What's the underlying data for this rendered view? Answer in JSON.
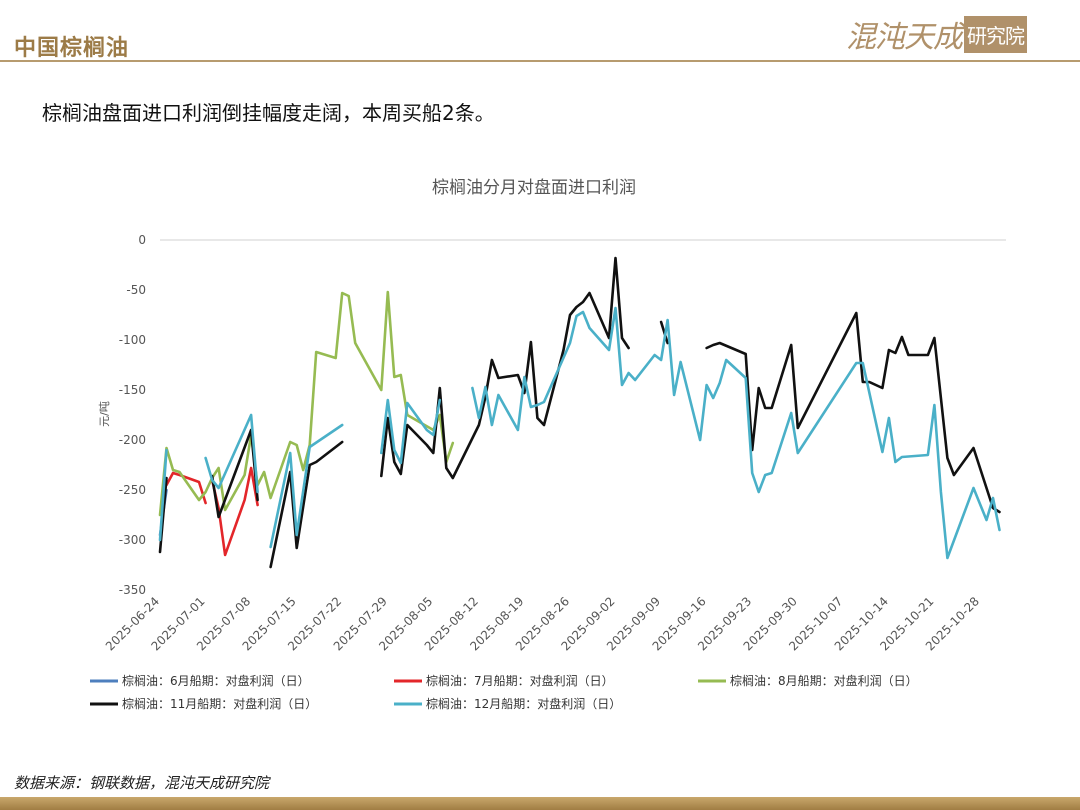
{
  "header": {
    "title": "中国棕榈油",
    "logo_main": "混沌天成",
    "logo_box": "研究院"
  },
  "subtitle": "棕榈油盘面进口利润倒挂幅度走阔，本周买船2条。",
  "source": "数据来源：钢联数据，混沌天成研究院",
  "chart_data": {
    "type": "line",
    "title": "棕榈油分月对盘面进口利润",
    "ylabel": "元/吨",
    "ylim": [
      -350,
      0
    ],
    "yticks": [
      0,
      -50,
      -100,
      -150,
      -200,
      -250,
      -300,
      -350
    ],
    "xlim": [
      "2025-06-24",
      "2025-11-01"
    ],
    "xticks": [
      "2025-06-24",
      "2025-07-01",
      "2025-07-08",
      "2025-07-15",
      "2025-07-22",
      "2025-07-29",
      "2025-08-05",
      "2025-08-12",
      "2025-08-19",
      "2025-08-26",
      "2025-09-02",
      "2025-09-09",
      "2025-09-16",
      "2025-09-23",
      "2025-09-30",
      "2025-10-07",
      "2025-10-14",
      "2025-10-21",
      "2025-10-28"
    ],
    "grid": false,
    "legend": "bottom",
    "series": [
      {
        "name": "棕榈油：6月船期：对盘利润（日）",
        "color": "#4e7fbe",
        "segments": [
          [
            [
              "2025-06-24",
              -295
            ],
            [
              "2025-06-25",
              -250
            ]
          ]
        ]
      },
      {
        "name": "棕榈油：7月船期：对盘利润（日）",
        "color": "#e3262a",
        "segments": [
          [
            [
              "2025-06-25",
              -245
            ],
            [
              "2025-06-26",
              -233
            ],
            [
              "2025-06-27",
              -235
            ],
            [
              "2025-06-30",
              -242
            ],
            [
              "2025-07-01",
              -263
            ]
          ],
          [
            [
              "2025-07-02",
              -240
            ],
            [
              "2025-07-03",
              -268
            ],
            [
              "2025-07-04",
              -315
            ],
            [
              "2025-07-07",
              -260
            ],
            [
              "2025-07-08",
              -228
            ],
            [
              "2025-07-09",
              -265
            ]
          ]
        ]
      },
      {
        "name": "棕榈油：8月船期：对盘利润（日）",
        "color": "#96bb52",
        "segments": [
          [
            [
              "2025-06-24",
              -275
            ],
            [
              "2025-06-25",
              -208
            ],
            [
              "2025-06-26",
              -230
            ],
            [
              "2025-06-27",
              -232
            ],
            [
              "2025-06-30",
              -260
            ],
            [
              "2025-07-01",
              -252
            ],
            [
              "2025-07-02",
              -238
            ],
            [
              "2025-07-03",
              -228
            ],
            [
              "2025-07-04",
              -270
            ],
            [
              "2025-07-07",
              -235
            ],
            [
              "2025-07-08",
              -195
            ],
            [
              "2025-07-09",
              -245
            ],
            [
              "2025-07-10",
              -232
            ],
            [
              "2025-07-11",
              -258
            ],
            [
              "2025-07-14",
              -202
            ],
            [
              "2025-07-15",
              -205
            ],
            [
              "2025-07-16",
              -230
            ],
            [
              "2025-07-17",
              -205
            ],
            [
              "2025-07-18",
              -112
            ],
            [
              "2025-07-21",
              -118
            ],
            [
              "2025-07-22",
              -53
            ],
            [
              "2025-07-23",
              -56
            ],
            [
              "2025-07-24",
              -103
            ],
            [
              "2025-07-28",
              -150
            ],
            [
              "2025-07-29",
              -52
            ],
            [
              "2025-07-30",
              -137
            ],
            [
              "2025-07-31",
              -135
            ],
            [
              "2025-08-01",
              -175
            ],
            [
              "2025-08-05",
              -190
            ],
            [
              "2025-08-06",
              -175
            ],
            [
              "2025-08-07",
              -222
            ],
            [
              "2025-08-08",
              -203
            ]
          ]
        ]
      },
      {
        "name": "棕榈油：11月船期：对盘利润（日）",
        "color": "#111111",
        "segments": [
          [
            [
              "2025-06-24",
              -312
            ],
            [
              "2025-06-25",
              -238
            ]
          ],
          [
            [
              "2025-07-02",
              -236
            ],
            [
              "2025-07-03",
              -277
            ],
            [
              "2025-07-08",
              -190
            ],
            [
              "2025-07-09",
              -260
            ]
          ],
          [
            [
              "2025-07-11",
              -327
            ],
            [
              "2025-07-14",
              -232
            ],
            [
              "2025-07-15",
              -308
            ],
            [
              "2025-07-17",
              -225
            ],
            [
              "2025-07-18",
              -222
            ],
            [
              "2025-07-22",
              -202
            ]
          ],
          [
            [
              "2025-07-28",
              -236
            ],
            [
              "2025-07-29",
              -178
            ],
            [
              "2025-07-30",
              -222
            ],
            [
              "2025-07-31",
              -234
            ],
            [
              "2025-08-01",
              -185
            ],
            [
              "2025-08-04",
              -205
            ],
            [
              "2025-08-05",
              -213
            ],
            [
              "2025-08-06",
              -148
            ],
            [
              "2025-08-07",
              -228
            ],
            [
              "2025-08-08",
              -238
            ],
            [
              "2025-08-12",
              -185
            ],
            [
              "2025-08-13",
              -157
            ],
            [
              "2025-08-14",
              -120
            ],
            [
              "2025-08-15",
              -138
            ],
            [
              "2025-08-18",
              -135
            ],
            [
              "2025-08-19",
              -153
            ],
            [
              "2025-08-20",
              -102
            ],
            [
              "2025-08-21",
              -178
            ],
            [
              "2025-08-22",
              -185
            ],
            [
              "2025-08-25",
              -110
            ],
            [
              "2025-08-26",
              -75
            ],
            [
              "2025-08-27",
              -67
            ],
            [
              "2025-08-28",
              -62
            ],
            [
              "2025-08-29",
              -53
            ],
            [
              "2025-09-01",
              -98
            ],
            [
              "2025-09-02",
              -18
            ],
            [
              "2025-09-03",
              -98
            ],
            [
              "2025-09-04",
              -108
            ]
          ],
          [
            [
              "2025-09-09",
              -82
            ],
            [
              "2025-09-10",
              -103
            ]
          ],
          [
            [
              "2025-09-16",
              -108
            ],
            [
              "2025-09-17",
              -105
            ],
            [
              "2025-09-18",
              -103
            ],
            [
              "2025-09-22",
              -114
            ],
            [
              "2025-09-23",
              -210
            ],
            [
              "2025-09-24",
              -148
            ],
            [
              "2025-09-25",
              -168
            ],
            [
              "2025-09-26",
              -168
            ],
            [
              "2025-09-29",
              -105
            ],
            [
              "2025-09-30",
              -188
            ],
            [
              "2025-10-09",
              -73
            ],
            [
              "2025-10-10",
              -142
            ],
            [
              "2025-10-11",
              -142
            ],
            [
              "2025-10-13",
              -148
            ],
            [
              "2025-10-14",
              -110
            ],
            [
              "2025-10-15",
              -113
            ],
            [
              "2025-10-16",
              -97
            ],
            [
              "2025-10-17",
              -115
            ],
            [
              "2025-10-20",
              -115
            ],
            [
              "2025-10-21",
              -98
            ],
            [
              "2025-10-23",
              -218
            ],
            [
              "2025-10-24",
              -235
            ],
            [
              "2025-10-27",
              -208
            ],
            [
              "2025-10-30",
              -268
            ],
            [
              "2025-10-31",
              -272
            ]
          ]
        ]
      },
      {
        "name": "棕榈油：12月船期：对盘利润（日）",
        "color": "#4ab0c8",
        "segments": [
          [
            [
              "2025-06-24",
              -300
            ],
            [
              "2025-06-25",
              -210
            ]
          ],
          [
            [
              "2025-07-01",
              -218
            ],
            [
              "2025-07-02",
              -240
            ],
            [
              "2025-07-03",
              -248
            ],
            [
              "2025-07-08",
              -175
            ],
            [
              "2025-07-09",
              -252
            ]
          ],
          [
            [
              "2025-07-11",
              -307
            ],
            [
              "2025-07-14",
              -213
            ],
            [
              "2025-07-15",
              -295
            ],
            [
              "2025-07-17",
              -207
            ],
            [
              "2025-07-22",
              -185
            ]
          ],
          [
            [
              "2025-07-28",
              -213
            ],
            [
              "2025-07-29",
              -160
            ],
            [
              "2025-07-30",
              -210
            ],
            [
              "2025-07-31",
              -223
            ],
            [
              "2025-08-01",
              -163
            ],
            [
              "2025-08-04",
              -190
            ],
            [
              "2025-08-05",
              -195
            ],
            [
              "2025-08-06",
              -160
            ]
          ],
          [
            [
              "2025-08-11",
              -148
            ],
            [
              "2025-08-12",
              -178
            ],
            [
              "2025-08-13",
              -147
            ],
            [
              "2025-08-14",
              -185
            ],
            [
              "2025-08-15",
              -155
            ],
            [
              "2025-08-18",
              -190
            ],
            [
              "2025-08-19",
              -137
            ],
            [
              "2025-08-20",
              -167
            ],
            [
              "2025-08-21",
              -165
            ],
            [
              "2025-08-22",
              -162
            ],
            [
              "2025-08-26",
              -103
            ],
            [
              "2025-08-27",
              -76
            ],
            [
              "2025-08-28",
              -72
            ],
            [
              "2025-08-29",
              -88
            ],
            [
              "2025-09-01",
              -110
            ],
            [
              "2025-09-02",
              -68
            ],
            [
              "2025-09-03",
              -145
            ],
            [
              "2025-09-04",
              -133
            ],
            [
              "2025-09-05",
              -140
            ],
            [
              "2025-09-08",
              -115
            ],
            [
              "2025-09-09",
              -120
            ],
            [
              "2025-09-10",
              -80
            ],
            [
              "2025-09-11",
              -155
            ],
            [
              "2025-09-12",
              -122
            ],
            [
              "2025-09-15",
              -200
            ],
            [
              "2025-09-16",
              -145
            ],
            [
              "2025-09-17",
              -158
            ],
            [
              "2025-09-18",
              -143
            ],
            [
              "2025-09-19",
              -120
            ],
            [
              "2025-09-22",
              -138
            ],
            [
              "2025-09-23",
              -233
            ],
            [
              "2025-09-24",
              -252
            ],
            [
              "2025-09-25",
              -235
            ],
            [
              "2025-09-26",
              -233
            ],
            [
              "2025-09-29",
              -173
            ],
            [
              "2025-09-30",
              -213
            ],
            [
              "2025-10-09",
              -123
            ],
            [
              "2025-10-10",
              -123
            ],
            [
              "2025-10-13",
              -212
            ],
            [
              "2025-10-14",
              -178
            ],
            [
              "2025-10-15",
              -222
            ],
            [
              "2025-10-16",
              -217
            ],
            [
              "2025-10-20",
              -215
            ],
            [
              "2025-10-21",
              -165
            ],
            [
              "2025-10-22",
              -252
            ],
            [
              "2025-10-23",
              -318
            ],
            [
              "2025-10-27",
              -248
            ],
            [
              "2025-10-29",
              -280
            ],
            [
              "2025-10-30",
              -258
            ],
            [
              "2025-10-31",
              -290
            ]
          ]
        ]
      }
    ]
  }
}
